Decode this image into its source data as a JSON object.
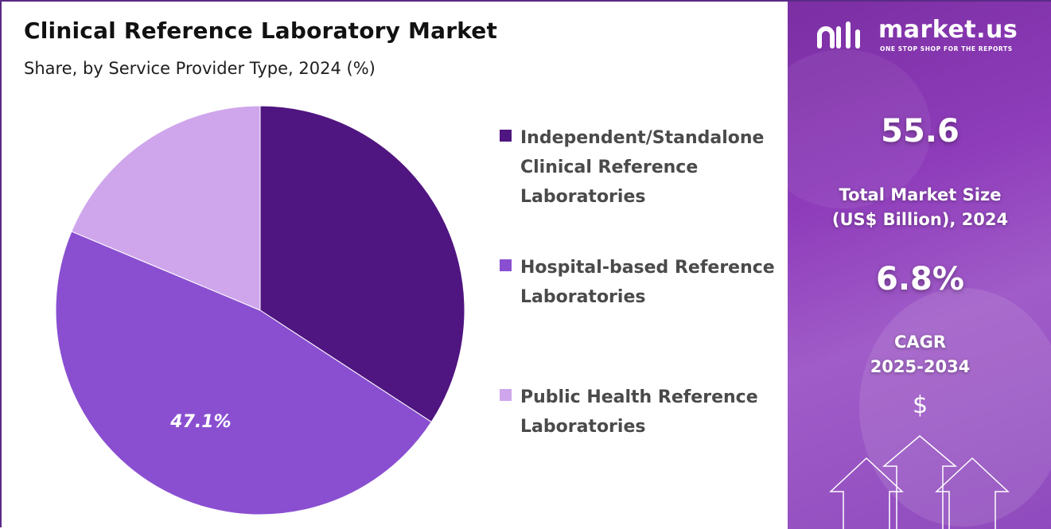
{
  "header": {
    "title": "Clinical Reference Laboratory Market",
    "subtitle": "Share, by Service Provider Type, 2024 (%)"
  },
  "chart_data": {
    "type": "pie",
    "title": "Clinical Reference Laboratory Market",
    "subtitle": "Share, by Service Provider Type, 2024 (%)",
    "categories": [
      "Independent/Standalone Clinical Reference Laboratories",
      "Hospital-based Reference Laboratories",
      "Public Health Reference Laboratories"
    ],
    "values": [
      34.2,
      47.1,
      18.7
    ],
    "colors": [
      "#4f1580",
      "#8a4fd1",
      "#cfa6ec"
    ],
    "data_labels": [
      "",
      "47.1%",
      ""
    ],
    "legend_position": "right"
  },
  "legend": {
    "items": [
      {
        "label": "Independent/Standalone Clinical Reference Laboratories",
        "color": "#4f1580"
      },
      {
        "label": "Hospital-based Reference Laboratories",
        "color": "#8a4fd1"
      },
      {
        "label": "Public Health Reference Laboratories",
        "color": "#cfa6ec"
      }
    ]
  },
  "sidebar": {
    "brand_name": "market.us",
    "brand_tagline": "ONE STOP SHOP FOR THE REPORTS",
    "market_size_value": "55.6",
    "market_size_label_line1": "Total Market Size",
    "market_size_label_line2": "(US$ Billion), 2024",
    "cagr_value": "6.8%",
    "cagr_label_line1": "CAGR",
    "cagr_label_line2": "2025-2034",
    "currency_symbol": "$",
    "icons": [
      "market-us-logo-icon",
      "up-arrow-icon"
    ],
    "accent_color": "#8f3dbb"
  }
}
